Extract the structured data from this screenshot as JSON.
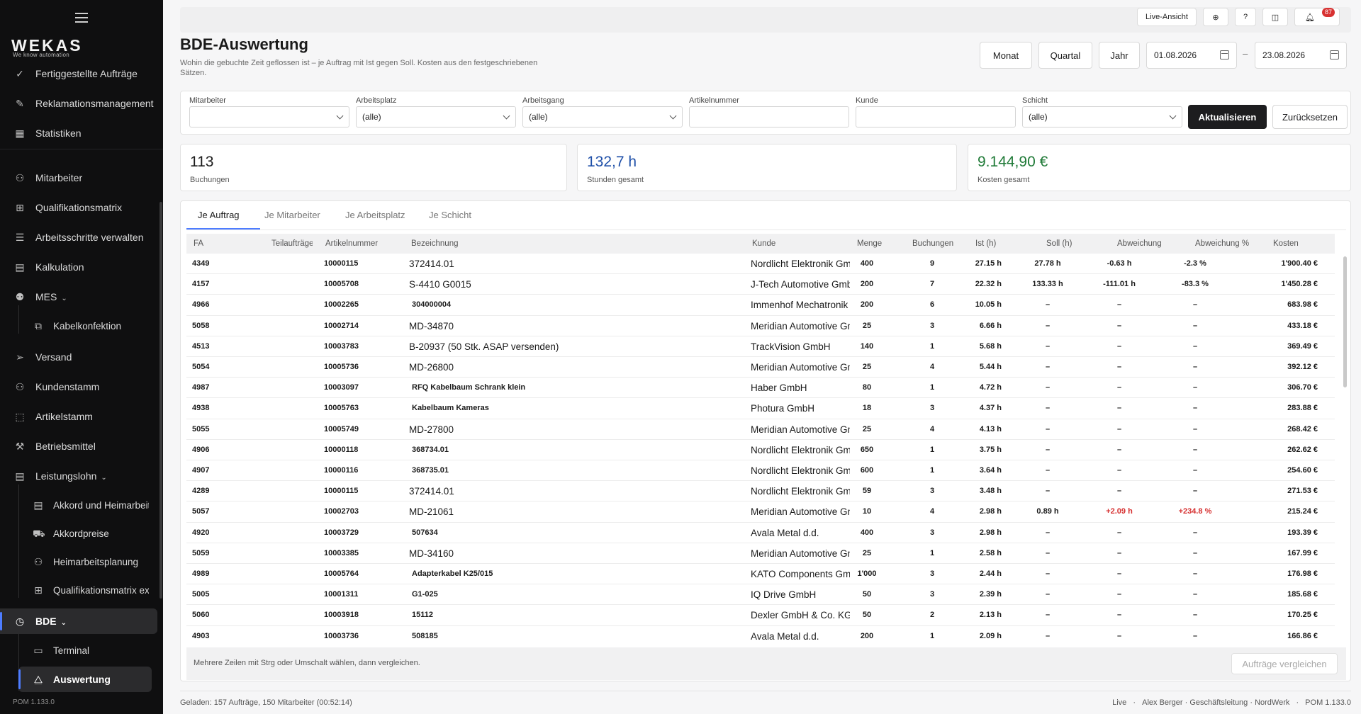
{
  "sidebar": {
    "logo": "WEKAS",
    "logo_sub": "We know automation",
    "version": "POM 1.133.0",
    "items": [
      {
        "label": "Fertiggestellte Aufträge",
        "icon": "check-circle-icon"
      },
      {
        "label": "Reklamationsmanagement",
        "icon": "wrench-icon"
      },
      {
        "label": "Statistiken",
        "icon": "chart-icon"
      },
      {
        "label": "Mitarbeiter",
        "icon": "users-icon"
      },
      {
        "label": "Qualifikationsmatrix",
        "icon": "matrix-icon"
      },
      {
        "label": "Arbeitsschritte verwalten",
        "icon": "list-icon"
      },
      {
        "label": "Kalkulation",
        "icon": "calculator-icon"
      },
      {
        "label": "MES",
        "icon": "robot-icon"
      },
      {
        "label": "Kabelkonfektion",
        "icon": "cable-icon"
      },
      {
        "label": "Versand",
        "icon": "send-icon"
      },
      {
        "label": "Kundenstamm",
        "icon": "customers-icon"
      },
      {
        "label": "Artikelstamm",
        "icon": "box-icon"
      },
      {
        "label": "Betriebsmittel",
        "icon": "tools-icon"
      },
      {
        "label": "Leistungslohn",
        "icon": "calculator-icon"
      },
      {
        "label": "Akkord und Heimarbeit",
        "icon": "calculator-icon"
      },
      {
        "label": "Akkordpreise",
        "icon": "cart-icon"
      },
      {
        "label": "Heimarbeitsplanung",
        "icon": "users-icon"
      },
      {
        "label": "Qualifikationsmatrix ex",
        "icon": "matrix-icon"
      },
      {
        "label": "BDE",
        "icon": "clock-icon"
      },
      {
        "label": "Terminal",
        "icon": "terminal-icon"
      },
      {
        "label": "Auswertung",
        "icon": "analytics-icon"
      }
    ]
  },
  "topbar": {
    "live_view": "Live-Ansicht",
    "help": "?",
    "notifications_count": "87"
  },
  "page": {
    "title": "BDE-Auswertung",
    "description": "Wohin die gebuchte Zeit geflossen ist – je Auftrag mit Ist gegen Soll. Kosten aus den festgeschriebenen Sätzen."
  },
  "range": {
    "month": "Monat",
    "quarter": "Quartal",
    "year": "Jahr",
    "from": "01.08.2026",
    "separator": "–",
    "to": "23.08.2026"
  },
  "filters": {
    "employee_label": "Mitarbeiter",
    "employee_value": "",
    "workplace_label": "Arbeitsplatz",
    "workplace_value": "(alle)",
    "operation_label": "Arbeitsgang",
    "operation_value": "(alle)",
    "article_label": "Artikelnummer",
    "article_value": "",
    "customer_label": "Kunde",
    "customer_value": "",
    "shift_label": "Schicht",
    "shift_value": "(alle)",
    "refresh": "Aktualisieren",
    "reset": "Zurücksetzen"
  },
  "kpis": {
    "bookings_value": "113",
    "bookings_label": "Buchungen",
    "hours_value": "132,7 h",
    "hours_label": "Stunden gesamt",
    "hours_color": "#1e4fa8",
    "costs_value": "9.144,90 €",
    "costs_label": "Kosten gesamt",
    "costs_color": "#1f7a37"
  },
  "tabs": [
    "Je Auftrag",
    "Je Mitarbeiter",
    "Je Arbeitsplatz",
    "Je Schicht"
  ],
  "table": {
    "columns": [
      "FA",
      "Teilaufträge",
      "Artikelnummer",
      "Bezeichnung",
      "Kunde",
      "Menge",
      "Buchungen",
      "Ist (h)",
      "Soll (h)",
      "Abweichung",
      "Abweichung %",
      "Kosten"
    ],
    "rows": [
      {
        "fa": "4349",
        "teil": "",
        "art": "10000115",
        "bez": "372414.01",
        "bez_style": "norm",
        "kunde": "Nordlicht Elektronik GmbH",
        "menge": "400",
        "buch": "9",
        "ist": "27.15 h",
        "soll": "27.78 h",
        "abw": "-0.63 h",
        "abwp": "-2.3 %",
        "kosten": "1'900.40 €",
        "red": false
      },
      {
        "fa": "4157",
        "teil": "",
        "art": "10005708",
        "bez": "S-4410 G0015",
        "bez_style": "norm",
        "kunde": "J-Tech Automotive GmbH",
        "menge": "200",
        "buch": "7",
        "ist": "22.32 h",
        "soll": "133.33 h",
        "abw": "-111.01 h",
        "abwp": "-83.3 %",
        "kosten": "1'450.28 €",
        "red": false
      },
      {
        "fa": "4966",
        "teil": "",
        "art": "10002265",
        "bez": "304000004",
        "bez_style": "bold",
        "kunde": "Immenhof Mechatronik",
        "menge": "200",
        "buch": "6",
        "ist": "10.05 h",
        "soll": "–",
        "abw": "–",
        "abwp": "–",
        "kosten": "683.98 €",
        "red": false
      },
      {
        "fa": "5058",
        "teil": "",
        "art": "10002714",
        "bez": "MD-34870",
        "bez_style": "norm",
        "kunde": "Meridian Automotive GmbH",
        "menge": "25",
        "buch": "3",
        "ist": "6.66 h",
        "soll": "–",
        "abw": "–",
        "abwp": "–",
        "kosten": "433.18 €",
        "red": false
      },
      {
        "fa": "4513",
        "teil": "",
        "art": "10003783",
        "bez": "B-20937 (50 Stk. ASAP versenden)",
        "bez_style": "norm",
        "kunde": "TrackVision GmbH",
        "menge": "140",
        "buch": "1",
        "ist": "5.68 h",
        "soll": "–",
        "abw": "–",
        "abwp": "–",
        "kosten": "369.49 €",
        "red": false
      },
      {
        "fa": "5054",
        "teil": "",
        "art": "10005736",
        "bez": "MD-26800",
        "bez_style": "norm",
        "kunde": "Meridian Automotive GmbH",
        "menge": "25",
        "buch": "4",
        "ist": "5.44 h",
        "soll": "–",
        "abw": "–",
        "abwp": "–",
        "kosten": "392.12 €",
        "red": false
      },
      {
        "fa": "4987",
        "teil": "",
        "art": "10003097",
        "bez": "RFQ Kabelbaum Schrank klein",
        "bez_style": "bold",
        "kunde": "Haber GmbH",
        "menge": "80",
        "buch": "1",
        "ist": "4.72 h",
        "soll": "–",
        "abw": "–",
        "abwp": "–",
        "kosten": "306.70 €",
        "red": false
      },
      {
        "fa": "4938",
        "teil": "",
        "art": "10005763",
        "bez": "Kabelbaum Kameras",
        "bez_style": "bold",
        "kunde": "Photura GmbH",
        "menge": "18",
        "buch": "3",
        "ist": "4.37 h",
        "soll": "–",
        "abw": "–",
        "abwp": "–",
        "kosten": "283.88 €",
        "red": false
      },
      {
        "fa": "5055",
        "teil": "",
        "art": "10005749",
        "bez": "MD-27800",
        "bez_style": "norm",
        "kunde": "Meridian Automotive GmbH",
        "menge": "25",
        "buch": "4",
        "ist": "4.13 h",
        "soll": "–",
        "abw": "–",
        "abwp": "–",
        "kosten": "268.42 €",
        "red": false
      },
      {
        "fa": "4906",
        "teil": "",
        "art": "10000118",
        "bez": "368734.01",
        "bez_style": "bold",
        "kunde": "Nordlicht Elektronik GmbH",
        "menge": "650",
        "buch": "1",
        "ist": "3.75 h",
        "soll": "–",
        "abw": "–",
        "abwp": "–",
        "kosten": "262.62 €",
        "red": false
      },
      {
        "fa": "4907",
        "teil": "",
        "art": "10000116",
        "bez": "368735.01",
        "bez_style": "bold",
        "kunde": "Nordlicht Elektronik GmbH",
        "menge": "600",
        "buch": "1",
        "ist": "3.64 h",
        "soll": "–",
        "abw": "–",
        "abwp": "–",
        "kosten": "254.60 €",
        "red": false
      },
      {
        "fa": "4289",
        "teil": "",
        "art": "10000115",
        "bez": "372414.01",
        "bez_style": "norm",
        "kunde": "Nordlicht Elektronik GmbH",
        "menge": "59",
        "buch": "3",
        "ist": "3.48 h",
        "soll": "–",
        "abw": "–",
        "abwp": "–",
        "kosten": "271.53 €",
        "red": false
      },
      {
        "fa": "5057",
        "teil": "",
        "art": "10002703",
        "bez": "MD-21061",
        "bez_style": "norm",
        "kunde": "Meridian Automotive GmbH",
        "menge": "10",
        "buch": "4",
        "ist": "2.98 h",
        "soll": "0.89 h",
        "abw": "+2.09 h",
        "abwp": "+234.8 %",
        "kosten": "215.24 €",
        "red": true
      },
      {
        "fa": "4920",
        "teil": "",
        "art": "10003729",
        "bez": "507634",
        "bez_style": "bold",
        "kunde": "Avala Metal d.d.",
        "menge": "400",
        "buch": "3",
        "ist": "2.98 h",
        "soll": "–",
        "abw": "–",
        "abwp": "–",
        "kosten": "193.39 €",
        "red": false
      },
      {
        "fa": "5059",
        "teil": "",
        "art": "10003385",
        "bez": "MD-34160",
        "bez_style": "norm",
        "kunde": "Meridian Automotive GmbH",
        "menge": "25",
        "buch": "1",
        "ist": "2.58 h",
        "soll": "–",
        "abw": "–",
        "abwp": "–",
        "kosten": "167.99 €",
        "red": false
      },
      {
        "fa": "4989",
        "teil": "",
        "art": "10005764",
        "bez": "Adapterkabel K25/015",
        "bez_style": "bold",
        "kunde": "KATO Components GmbH",
        "menge": "1'000",
        "buch": "3",
        "ist": "2.44 h",
        "soll": "–",
        "abw": "–",
        "abwp": "–",
        "kosten": "176.98 €",
        "red": false
      },
      {
        "fa": "5005",
        "teil": "",
        "art": "10001311",
        "bez": "G1-025",
        "bez_style": "bold",
        "kunde": "IQ Drive GmbH",
        "menge": "50",
        "buch": "3",
        "ist": "2.39 h",
        "soll": "–",
        "abw": "–",
        "abwp": "–",
        "kosten": "185.68 €",
        "red": false
      },
      {
        "fa": "5060",
        "teil": "",
        "art": "10003918",
        "bez": "15112",
        "bez_style": "bold",
        "kunde": "Dexler GmbH & Co. KG",
        "menge": "50",
        "buch": "2",
        "ist": "2.13 h",
        "soll": "–",
        "abw": "–",
        "abwp": "–",
        "kosten": "170.25 €",
        "red": false
      },
      {
        "fa": "4903",
        "teil": "",
        "art": "10003736",
        "bez": "508185",
        "bez_style": "bold",
        "kunde": "Avala Metal d.d.",
        "menge": "200",
        "buch": "1",
        "ist": "2.09 h",
        "soll": "–",
        "abw": "–",
        "abwp": "–",
        "kosten": "166.86 €",
        "red": false
      }
    ],
    "footer_note": "Mehrere Zeilen mit Strg oder Umschalt wählen, dann vergleichen.",
    "compare": "Aufträge vergleichen"
  },
  "status": {
    "loaded": "Geladen: 157 Aufträge, 150 Mitarbeiter (00:52:14)",
    "mode": "Live",
    "user": "Alex Berger · Geschäftsleitung · NordWerk",
    "version": "POM 1.133.0"
  }
}
